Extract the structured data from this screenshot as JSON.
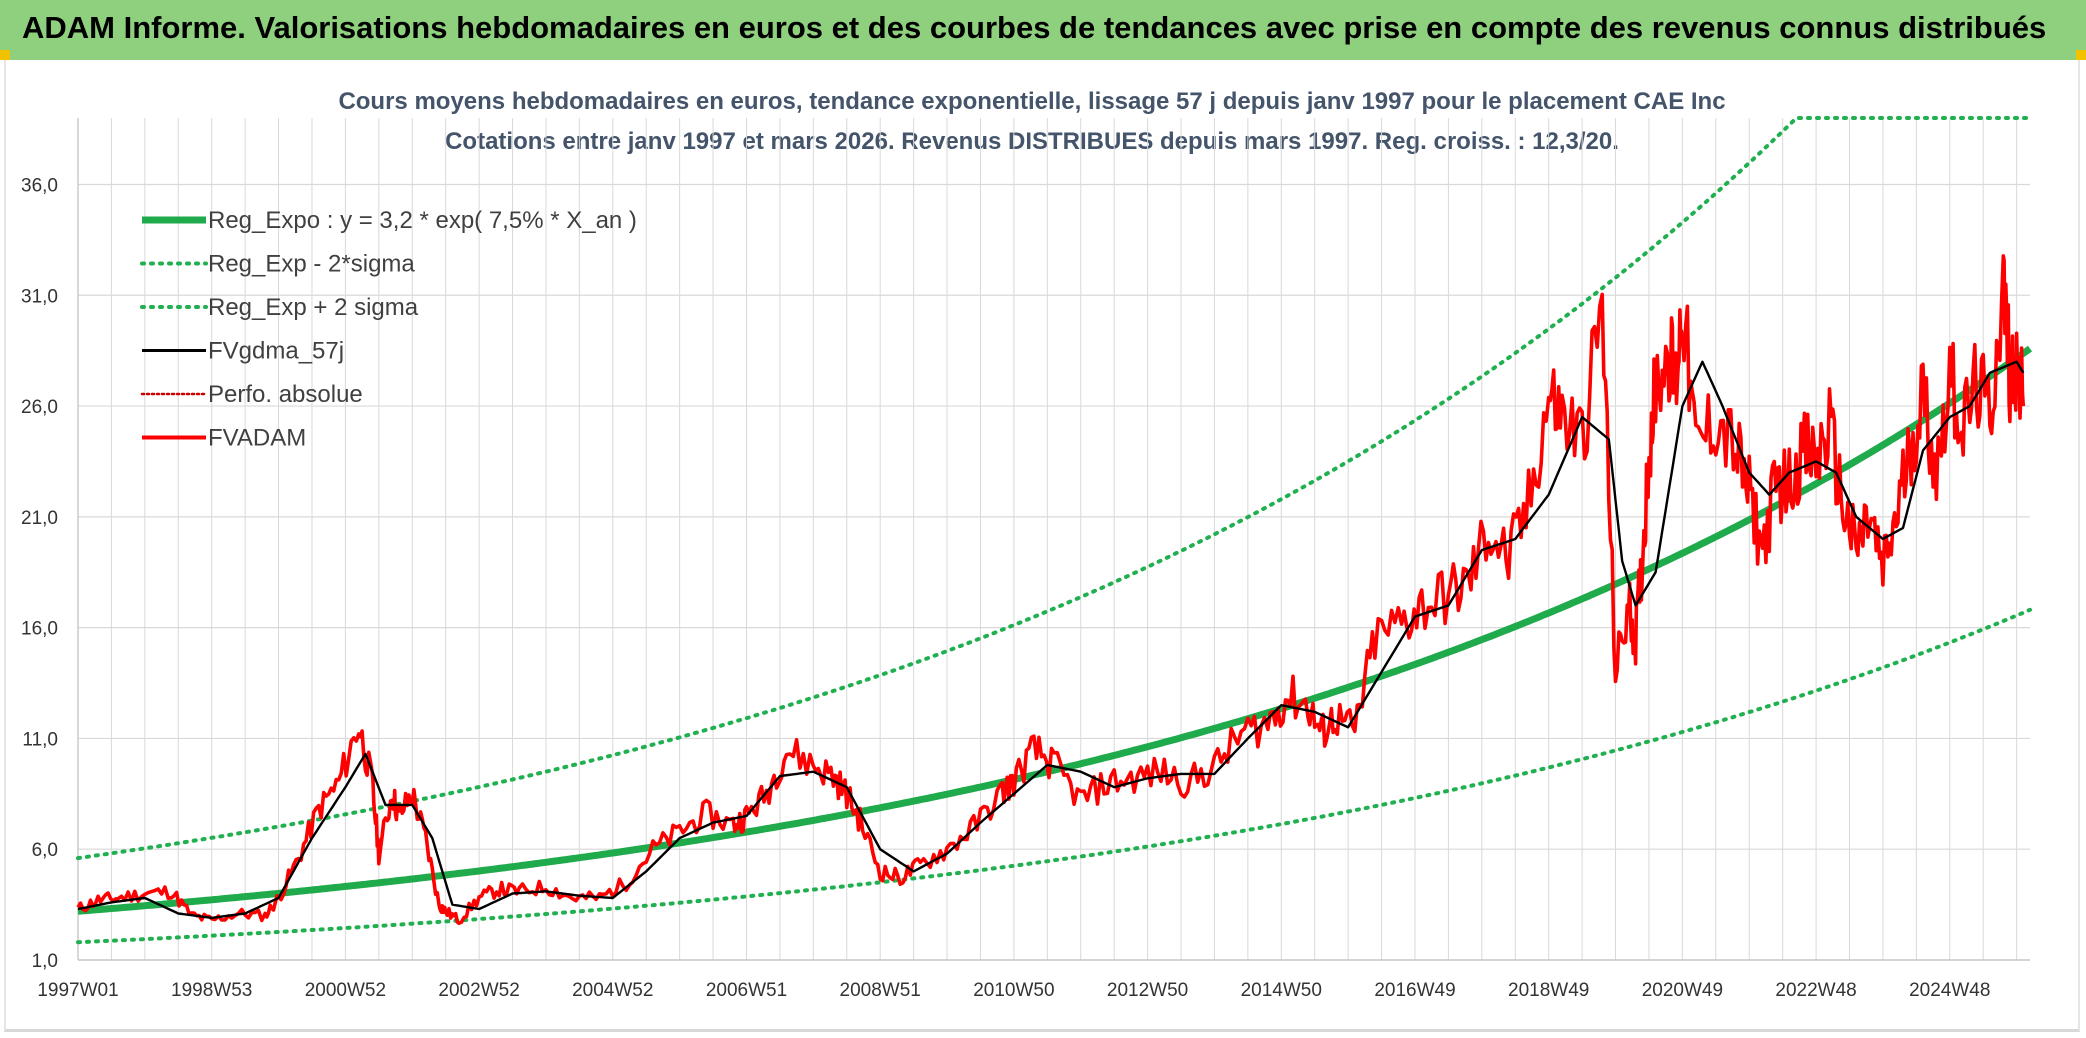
{
  "header": {
    "title": "ADAM Informe. Valorisations hebdomadaires en euros et des courbes de tendances avec prise en compte des revenus connus distribués"
  },
  "colors": {
    "banner": "#8fd07f",
    "reg": "#1faa4b",
    "sigma": "#20b050",
    "smooth": "#000000",
    "price": "#ff0000",
    "perfo": "#cc0000",
    "grid": "#d9d9d9"
  },
  "chart_data": {
    "type": "line",
    "title": "Cours moyens hebdomadaires en euros, tendance exponentielle, lissage 57 j depuis janv 1997 pour le placement CAE Inc",
    "subtitle": "Cotations entre janv 1997 et mars 2026. Revenus DISTRIBUES depuis mars 1997. Reg. croiss. : 12,3/20.",
    "xlabel": "",
    "ylabel": "",
    "ylim": [
      1.0,
      39.0
    ],
    "xlim": [
      1997.0,
      2026.2
    ],
    "grid": true,
    "legend_position": "top-left",
    "y_ticks": [
      "1,0",
      "6,0",
      "11,0",
      "16,0",
      "21,0",
      "26,0",
      "31,0",
      "36,0"
    ],
    "y_tick_values": [
      1,
      6,
      11,
      16,
      21,
      26,
      31,
      36
    ],
    "x_ticks": [
      "1997W01",
      "1998W53",
      "2000W52",
      "2002W52",
      "2004W52",
      "2006W51",
      "2008W51",
      "2010W50",
      "2012W50",
      "2014W50",
      "2016W49",
      "2018W49",
      "2020W49",
      "2022W48",
      "2024W48"
    ],
    "x_tick_values": [
      1997.0,
      1999.0,
      2001.0,
      2003.0,
      2005.0,
      2007.0,
      2009.0,
      2011.0,
      2013.0,
      2015.0,
      2017.0,
      2019.0,
      2021.0,
      2023.0,
      2025.0
    ],
    "legend": [
      {
        "name": "Reg_Expo : y = 3,2 * exp( 7,5% *  X_an )",
        "style": "thick",
        "color": "#1faa4b"
      },
      {
        "name": "Reg_Exp - 2*sigma",
        "style": "dotted",
        "color": "#20b050"
      },
      {
        "name": "Reg_Exp + 2 sigma",
        "style": "dotted",
        "color": "#20b050"
      },
      {
        "name": "FVgdma_57j",
        "style": "solid",
        "color": "#000000"
      },
      {
        "name": "Perfo. absolue",
        "style": "dotted",
        "color": "#cc0000"
      },
      {
        "name": "FVADAM",
        "style": "solid",
        "color": "#ff0000"
      }
    ],
    "series": [
      {
        "name": "Reg_Expo",
        "formula": "3.2*exp(0.075*X_an)",
        "x": [
          1997,
          2026.2
        ],
        "a": 3.2,
        "b": 0.075
      },
      {
        "name": "Reg_Exp - 2*sigma",
        "formula": "1.8*exp(0.0765*X_an)",
        "a": 1.8,
        "b": 0.0765
      },
      {
        "name": "Reg_Exp + 2 sigma",
        "formula": "5.6*exp(0.0755*X_an), capped at 39",
        "a": 5.6,
        "b": 0.0755,
        "cap": 39
      },
      {
        "name": "FVADAM",
        "x": [
          1997.0,
          1997.3,
          1997.6,
          1998.0,
          1998.4,
          1998.7,
          1999.0,
          1999.4,
          1999.8,
          2000.0,
          2000.3,
          2000.6,
          2000.9,
          2001.2,
          2001.4,
          2001.5,
          2001.7,
          2001.8,
          2002.0,
          2002.2,
          2002.4,
          2002.5,
          2002.7,
          2003.0,
          2003.3,
          2003.6,
          2004.0,
          2004.4,
          2004.8,
          2005.2,
          2005.6,
          2006.0,
          2006.4,
          2006.8,
          2007.0,
          2007.3,
          2007.6,
          2008.0,
          2008.3,
          2008.5,
          2008.7,
          2009.0,
          2009.3,
          2009.6,
          2010.0,
          2010.4,
          2010.8,
          2011.0,
          2011.3,
          2011.6,
          2012.0,
          2012.4,
          2012.8,
          2013.2,
          2013.6,
          2014.0,
          2014.4,
          2014.8,
          2015.1,
          2015.4,
          2015.6,
          2015.8,
          2016.1,
          2016.4,
          2016.8,
          2017.1,
          2017.5,
          2017.8,
          2018.1,
          2018.4,
          2018.7,
          2019.0,
          2019.2,
          2019.5,
          2019.8,
          2020.0,
          2020.2,
          2020.3,
          2020.4,
          2020.5,
          2020.6,
          2020.8,
          2020.9,
          2021.0,
          2021.2,
          2021.5,
          2021.8,
          2022.0,
          2022.2,
          2022.4,
          2022.6,
          2022.8,
          2023.0,
          2023.2,
          2023.4,
          2023.6,
          2023.8,
          2024.0,
          2024.2,
          2024.4,
          2024.6,
          2024.8,
          2025.0,
          2025.2,
          2025.4,
          2025.6,
          2025.8,
          2025.9,
          2026.0,
          2026.1
        ],
        "values": [
          3.3,
          3.7,
          3.8,
          4.0,
          4.1,
          3.0,
          2.8,
          3.1,
          3.0,
          3.8,
          5.6,
          7.8,
          9.0,
          11.6,
          9.0,
          5.8,
          8.5,
          7.5,
          8.5,
          6.5,
          3.5,
          3.2,
          2.8,
          3.8,
          4.2,
          4.1,
          4.3,
          3.8,
          3.8,
          4.5,
          6.0,
          6.8,
          7.6,
          7.1,
          7.5,
          8.5,
          10.5,
          9.8,
          9.3,
          8.5,
          7.3,
          5.0,
          4.7,
          5.3,
          6.0,
          7.0,
          8.5,
          9.1,
          10.5,
          9.8,
          8.2,
          9.0,
          9.2,
          9.5,
          9.0,
          9.7,
          11.2,
          11.7,
          12.9,
          12.5,
          11.2,
          12.0,
          11.3,
          15.5,
          16.2,
          17.0,
          17.5,
          18.0,
          20.5,
          19.0,
          21.5,
          26.5,
          25.5,
          24.5,
          30.5,
          14.0,
          17.0,
          15.5,
          19.0,
          24.0,
          27.0,
          28.5,
          27.0,
          30.8,
          24.0,
          25.5,
          24.0,
          22.0,
          19.5,
          22.5,
          22.5,
          24.0,
          23.5,
          25.0,
          21.5,
          19.5,
          21.0,
          18.5,
          21.0,
          24.0,
          26.5,
          23.0,
          27.5,
          25.0,
          27.0,
          25.5,
          31.5,
          27.5,
          28.0,
          26.0
        ]
      },
      {
        "name": "FVgdma_57j",
        "x": [
          1997.0,
          1997.5,
          1998.0,
          1998.5,
          1999.0,
          1999.5,
          2000.0,
          2000.5,
          2001.0,
          2001.3,
          2001.6,
          2002.0,
          2002.3,
          2002.6,
          2003.0,
          2003.5,
          2004.0,
          2004.5,
          2005.0,
          2005.5,
          2006.0,
          2006.5,
          2007.0,
          2007.5,
          2008.0,
          2008.5,
          2009.0,
          2009.5,
          2010.0,
          2010.5,
          2011.0,
          2011.5,
          2012.0,
          2012.5,
          2013.0,
          2013.5,
          2014.0,
          2014.5,
          2015.0,
          2015.5,
          2016.0,
          2016.5,
          2017.0,
          2017.5,
          2018.0,
          2018.5,
          2019.0,
          2019.5,
          2019.9,
          2020.1,
          2020.3,
          2020.6,
          2021.0,
          2021.3,
          2021.6,
          2022.0,
          2022.3,
          2022.6,
          2023.0,
          2023.3,
          2023.6,
          2024.0,
          2024.3,
          2024.6,
          2025.0,
          2025.3,
          2025.6,
          2026.0,
          2026.1
        ],
        "values": [
          3.3,
          3.6,
          3.8,
          3.1,
          2.9,
          3.1,
          3.8,
          6.5,
          8.8,
          10.3,
          8.0,
          8.0,
          6.5,
          3.5,
          3.3,
          4.0,
          4.1,
          3.9,
          3.8,
          5.0,
          6.5,
          7.2,
          7.5,
          9.3,
          9.5,
          8.8,
          6.0,
          5.0,
          5.8,
          7.2,
          8.5,
          9.8,
          9.5,
          8.8,
          9.2,
          9.4,
          9.4,
          11.0,
          12.5,
          12.2,
          11.5,
          14.0,
          16.5,
          17.0,
          19.5,
          20.0,
          22.0,
          25.5,
          24.5,
          19.0,
          17.0,
          18.5,
          26.0,
          28.0,
          26.0,
          23.0,
          22.0,
          23.0,
          23.5,
          23.0,
          21.0,
          20.0,
          20.5,
          24.0,
          25.5,
          26.0,
          27.5,
          28.0,
          27.5
        ]
      }
    ]
  }
}
